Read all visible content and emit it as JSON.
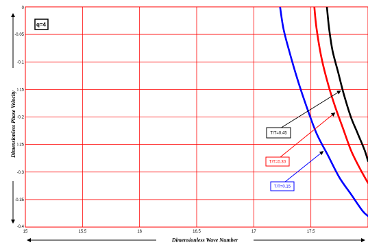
{
  "chart_data": {
    "type": "line",
    "title": "",
    "xlabel": "Dimensionless Wave Number",
    "ylabel": "Dimensionless Phase Velocity",
    "xlim": [
      15,
      18
    ],
    "ylim": [
      -0.4,
      0
    ],
    "xticks": [
      "15",
      "15.5",
      "16",
      "16.5",
      "17",
      "17.5"
    ],
    "yticks": [
      "0",
      "-0.05",
      "-0.1",
      "-0.15",
      "-0.2",
      "-0.25",
      "-0.3",
      "-0.35",
      "-0.4"
    ],
    "grid": true,
    "parameter_label": "q=4",
    "series": [
      {
        "name": "T/T=0.15",
        "color": "#0000ff",
        "x": [
          17.23,
          17.26,
          17.31,
          17.38,
          17.46,
          17.55,
          17.65,
          17.75,
          17.85,
          17.95,
          18.0
        ],
        "y": [
          0,
          -0.04,
          -0.08,
          -0.13,
          -0.18,
          -0.23,
          -0.27,
          -0.31,
          -0.34,
          -0.37,
          -0.38
        ]
      },
      {
        "name": "T/T=0.30",
        "color": "#ff0000",
        "x": [
          17.53,
          17.55,
          17.59,
          17.65,
          17.71,
          17.78,
          17.85,
          17.92,
          18.0
        ],
        "y": [
          0,
          -0.04,
          -0.09,
          -0.14,
          -0.18,
          -0.22,
          -0.26,
          -0.29,
          -0.32
        ]
      },
      {
        "name": "T/T=0.45",
        "color": "#000000",
        "x": [
          17.64,
          17.66,
          17.69,
          17.74,
          17.79,
          17.85,
          17.91,
          17.97,
          18.0
        ],
        "y": [
          0,
          -0.04,
          -0.08,
          -0.12,
          -0.16,
          -0.2,
          -0.23,
          -0.26,
          -0.28
        ]
      }
    ]
  },
  "colors": {
    "grid": "#ff0000",
    "background": "#ffffff"
  }
}
